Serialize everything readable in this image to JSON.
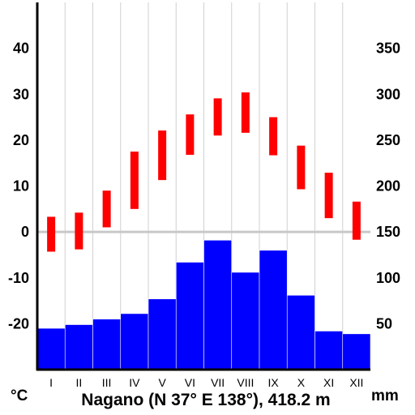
{
  "chart_data": {
    "type": "bar",
    "title": "Nagano (N 37° E 138°), 418.2 m",
    "left_unit": "°C",
    "right_unit": "mm",
    "categories": [
      "I",
      "II",
      "III",
      "IV",
      "V",
      "VI",
      "VII",
      "VIII",
      "IX",
      "X",
      "XI",
      "XII"
    ],
    "temperature_range": {
      "ylim": [
        -30,
        50
      ],
      "ticks": [
        -20,
        -10,
        0,
        10,
        20,
        30,
        40
      ],
      "tick_labels": [
        "-20",
        "-10",
        "0",
        "10",
        "20",
        "30",
        "40"
      ],
      "low": [
        -4.3,
        -3.8,
        1.0,
        5.0,
        11.3,
        16.8,
        21.0,
        21.6,
        16.7,
        9.3,
        3.0,
        -1.7
      ],
      "high": [
        3.3,
        4.2,
        9.0,
        17.5,
        22.1,
        25.6,
        29.1,
        30.4,
        25.0,
        18.8,
        12.9,
        6.6
      ]
    },
    "precipitation": {
      "ylim": [
        0,
        400
      ],
      "ticks": [
        50,
        100,
        150,
        200,
        250,
        300,
        350
      ],
      "tick_labels": [
        "50",
        "100",
        "150",
        "200",
        "250",
        "300",
        "350"
      ],
      "values": [
        45,
        49,
        55,
        61,
        77,
        117,
        141,
        106,
        130,
        81,
        42,
        39
      ]
    },
    "zero_line": 0,
    "colors": {
      "temperature": "#ff0000",
      "precipitation": "#0000ff",
      "grid": "#d0d0d0",
      "zero_line": "#c8c8c8",
      "axis": "#000000"
    },
    "grid": true
  }
}
